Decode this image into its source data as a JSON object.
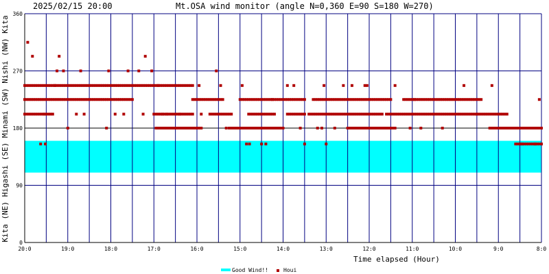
{
  "header": {
    "timestamp": "2025/02/15 20:00",
    "title": "Mt.OSA wind monitor (angle N=0,360 E=90 S=180 W=270)"
  },
  "left_axis_text": "Kita (NE) Higashi (SE) Minami (SW) Nishi (NW) Kita",
  "colors": {
    "grid": "#000080",
    "good_band": "#00ffff",
    "points": "#b00000",
    "axis": "#000000"
  },
  "chart_data": {
    "type": "scatter",
    "title": "Mt.OSA wind monitor (angle N=0,360 E=90 S=180 W=270)",
    "xlabel": "Time elapsed (Hour)",
    "ylabel": "",
    "x_reversed": true,
    "xlim": [
      8,
      20
    ],
    "ylim": [
      0,
      360
    ],
    "y_ticks": [
      0,
      90,
      180,
      270,
      360
    ],
    "x_ticks": [
      {
        "hour": 20,
        "label": "20:0"
      },
      {
        "hour": 19,
        "label": "19:0"
      },
      {
        "hour": 18,
        "label": "18:0"
      },
      {
        "hour": 17,
        "label": "17:0"
      },
      {
        "hour": 16,
        "label": "16:0"
      },
      {
        "hour": 15,
        "label": "15:0"
      },
      {
        "hour": 14,
        "label": "14:0"
      },
      {
        "hour": 13,
        "label": "13:0"
      },
      {
        "hour": 12,
        "label": "12:0"
      },
      {
        "hour": 11,
        "label": "11:0"
      },
      {
        "hour": 10,
        "label": "10:0"
      },
      {
        "hour": 9,
        "label": "9:0"
      },
      {
        "hour": 8,
        "label": "8:0"
      }
    ],
    "minor_x_hours": [
      19.5,
      18.5,
      17.5,
      16.5,
      15.5,
      14.5,
      13.5,
      12.5,
      11.5,
      10.5,
      9.5,
      8.5
    ],
    "good_wind_band": [
      110,
      160
    ],
    "legend": [
      {
        "label": "Good Wind!!",
        "kind": "band"
      },
      {
        "label": "Houi",
        "kind": "points"
      }
    ],
    "legend_position": "bottom-center",
    "grid": true,
    "series": [
      {
        "name": "Houi",
        "runs": [
          [
            20.0,
            19.75,
            202
          ],
          [
            20.0,
            19.72,
            247
          ],
          [
            20.0,
            19.75,
            225
          ],
          [
            19.7,
            19.3,
            247
          ],
          [
            19.7,
            17.5,
            225
          ],
          [
            19.7,
            19.35,
            202
          ],
          [
            19.3,
            16.9,
            247
          ],
          [
            17.0,
            16.1,
            202
          ],
          [
            16.9,
            16.1,
            247
          ],
          [
            16.9,
            15.9,
            180
          ],
          [
            16.1,
            15.4,
            225
          ],
          [
            15.7,
            15.2,
            202
          ],
          [
            15.2,
            14.0,
            180
          ],
          [
            15.0,
            13.5,
            225
          ],
          [
            14.8,
            14.2,
            202
          ],
          [
            13.9,
            13.5,
            202
          ],
          [
            13.4,
            11.7,
            202
          ],
          [
            13.3,
            11.5,
            225
          ],
          [
            12.5,
            11.4,
            180
          ],
          [
            11.6,
            8.8,
            202
          ],
          [
            11.2,
            9.4,
            225
          ],
          [
            9.2,
            8.0,
            180
          ],
          [
            8.6,
            8.0,
            155
          ]
        ],
        "points": [
          [
            19.93,
            315
          ],
          [
            19.82,
            293
          ],
          [
            19.63,
            155
          ],
          [
            19.55,
            202
          ],
          [
            19.52,
            155
          ],
          [
            19.25,
            270
          ],
          [
            19.2,
            293
          ],
          [
            19.0,
            180
          ],
          [
            19.1,
            270
          ],
          [
            18.8,
            202
          ],
          [
            18.7,
            270
          ],
          [
            18.62,
            202
          ],
          [
            18.1,
            180
          ],
          [
            18.05,
            270
          ],
          [
            17.9,
            202
          ],
          [
            17.7,
            202
          ],
          [
            17.6,
            270
          ],
          [
            17.35,
            270
          ],
          [
            17.25,
            202
          ],
          [
            17.2,
            293
          ],
          [
            17.05,
            270
          ],
          [
            16.95,
            180
          ],
          [
            16.8,
            202
          ],
          [
            16.7,
            202
          ],
          [
            16.45,
            180
          ],
          [
            16.4,
            202
          ],
          [
            16.05,
            180
          ],
          [
            15.95,
            247
          ],
          [
            15.45,
            247
          ],
          [
            15.9,
            202
          ],
          [
            15.55,
            270
          ],
          [
            15.32,
            180
          ],
          [
            15.25,
            180
          ],
          [
            14.95,
            247
          ],
          [
            14.85,
            155
          ],
          [
            14.78,
            155
          ],
          [
            14.5,
            155
          ],
          [
            14.4,
            155
          ],
          [
            14.25,
            225
          ],
          [
            13.9,
            247
          ],
          [
            13.75,
            247
          ],
          [
            13.6,
            180
          ],
          [
            13.5,
            155
          ],
          [
            13.2,
            180
          ],
          [
            13.1,
            180
          ],
          [
            13.05,
            247
          ],
          [
            13.0,
            155
          ],
          [
            12.8,
            180
          ],
          [
            12.6,
            247
          ],
          [
            12.4,
            247
          ],
          [
            12.25,
            180
          ],
          [
            12.1,
            247
          ],
          [
            12.05,
            247
          ],
          [
            11.8,
            180
          ],
          [
            11.6,
            180
          ],
          [
            11.4,
            247
          ],
          [
            11.05,
            180
          ],
          [
            10.95,
            225
          ],
          [
            10.8,
            180
          ],
          [
            10.3,
            180
          ],
          [
            9.8,
            247
          ],
          [
            9.5,
            202
          ],
          [
            9.15,
            247
          ],
          [
            8.85,
            180
          ],
          [
            8.78,
            180
          ],
          [
            8.45,
            155
          ],
          [
            8.15,
            155
          ],
          [
            8.1,
            180
          ],
          [
            8.05,
            225
          ],
          [
            8.02,
            180
          ]
        ]
      }
    ]
  }
}
